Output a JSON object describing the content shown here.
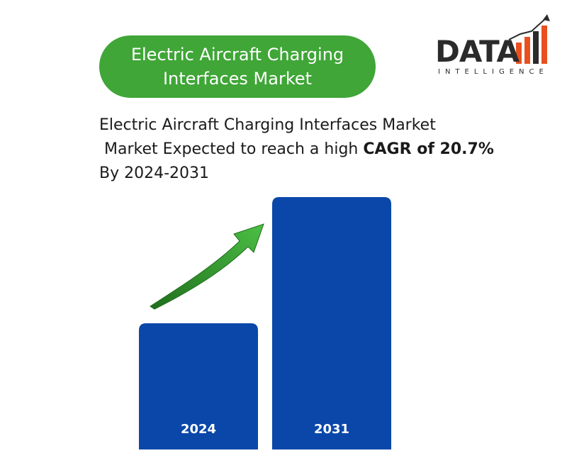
{
  "banner": {
    "line1": "Electric Aircraft Charging",
    "line2": "Interfaces Market"
  },
  "logo": {
    "wordmark": "DATA",
    "tagline": "INTELLIGENCE"
  },
  "headline": {
    "line1": "Electric Aircraft Charging Interfaces Market",
    "line2_prefix": " Market Expected to reach a high ",
    "line2_bold": "CAGR of 20.7%",
    "line3": "By 2024-2031"
  },
  "colors": {
    "bar": "#0a47a9",
    "banner": "#3fa637",
    "arrow": "#3aa335",
    "logo_orange": "#e8501f",
    "logo_dark": "#2b2b2b"
  },
  "chart_data": {
    "type": "bar",
    "categories": [
      "2024",
      "2031"
    ],
    "values": [
      1,
      2
    ],
    "title": "",
    "xlabel": "",
    "ylabel": "",
    "ylim": [
      0,
      2
    ],
    "annotations": [
      "upward-trend-arrow"
    ]
  }
}
